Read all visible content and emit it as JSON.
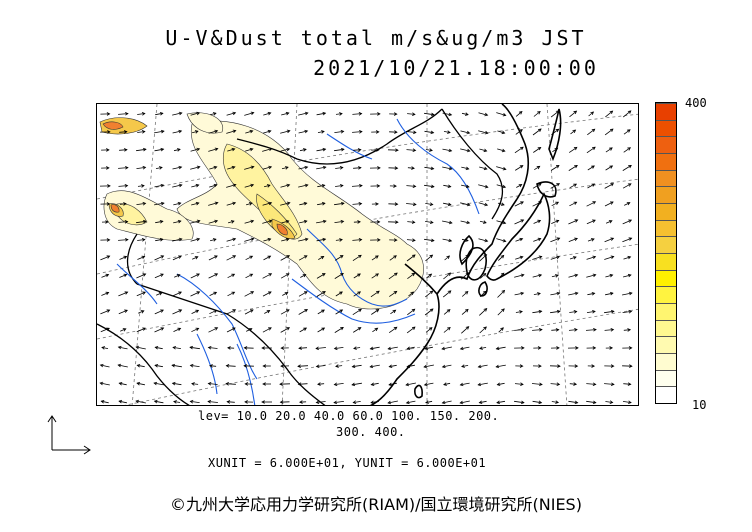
{
  "header": {
    "title_line1": "U-V&Dust total m/s&ug/m3 JST",
    "title_line2": "2021/10/21.18:00:00"
  },
  "colorbar": {
    "max_label": "400",
    "min_label": "10",
    "colors": [
      "#ffffff",
      "#ffffee",
      "#fffcd0",
      "#fffab0",
      "#fff890",
      "#fff570",
      "#fff340",
      "#fff000",
      "#f8e020",
      "#f5d040",
      "#f5c030",
      "#f2b020",
      "#f0a020",
      "#f09020",
      "#f07010",
      "#ee6010",
      "#ec5000",
      "#e84000"
    ]
  },
  "legend": {
    "levels_line1": "lev= 10.0 20.0 40.0 60.0 100. 150. 200.",
    "levels_line2": "300. 400.",
    "units_line": "XUNIT = 6.000E+01, YUNIT = 6.000E+01"
  },
  "map": {
    "land_color": "#fffce0",
    "coast_color": "#000000",
    "river_color": "#1f5fe0",
    "dust_level_colors": [
      "#fffad8",
      "#fff3a0",
      "#fce87a",
      "#f5c84a",
      "#f08030",
      "#e85010"
    ]
  },
  "footer": {
    "copyright": "©九州大学応用力学研究所(RIAM)/国立環境研究所(NIES)"
  }
}
